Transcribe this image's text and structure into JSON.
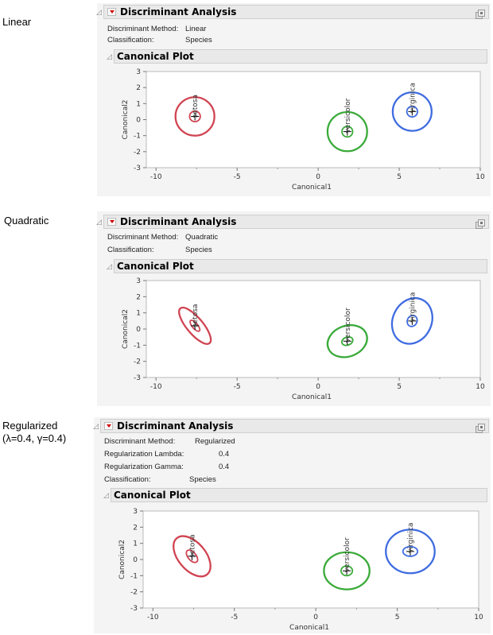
{
  "panels": [
    {
      "side_label": [
        "Linear"
      ],
      "title": "Discriminant Analysis",
      "info": [
        [
          "Discriminant Method:",
          "Linear"
        ],
        [
          "Classification:",
          "Species"
        ]
      ],
      "plot_title": "Canonical Plot"
    },
    {
      "side_label": [
        "Quadratic"
      ],
      "title": "Discriminant Analysis",
      "info": [
        [
          "Discriminant Method:",
          "Quadratic"
        ],
        [
          "Classification:",
          "Species"
        ]
      ],
      "plot_title": "Canonical Plot"
    },
    {
      "side_label": [
        "Regularized",
        "(λ=0.4, γ=0.4)"
      ],
      "title": "Discriminant Analysis",
      "info": [
        [
          "Discriminant Method:",
          "Regularized"
        ],
        [
          "Regularization Lambda:",
          "0.4"
        ],
        [
          "Regularization Gamma:",
          "0.4"
        ],
        [
          "Classification:",
          "Species"
        ]
      ],
      "plot_title": "Canonical Plot"
    }
  ],
  "colors": {
    "setosa": "#d04452",
    "versicolor": "#3aaa3a",
    "virginica": "#3f6ce0"
  },
  "chart_data": [
    {
      "type": "scatter",
      "xlabel": "Canonical1",
      "ylabel": "Canonical2",
      "xlim": [
        -10.6,
        10
      ],
      "ylim": [
        -3,
        3
      ],
      "xticks": [
        -10,
        -5,
        0,
        5,
        10
      ],
      "yticks": [
        3,
        2,
        1,
        0,
        -1,
        -2,
        -3
      ],
      "groups": [
        {
          "name": "setosa",
          "center": [
            -7.6,
            0.2
          ],
          "outer": [
            1.2,
            1.2,
            0
          ],
          "inner": [
            0.33,
            0.33,
            0
          ]
        },
        {
          "name": "versicolor",
          "center": [
            1.8,
            -0.75
          ],
          "outer": [
            1.22,
            1.22,
            0
          ],
          "inner": [
            0.33,
            0.33,
            0
          ]
        },
        {
          "name": "virginica",
          "center": [
            5.8,
            0.5
          ],
          "outer": [
            1.2,
            1.2,
            0
          ],
          "inner": [
            0.33,
            0.33,
            0
          ]
        }
      ]
    },
    {
      "type": "scatter",
      "xlabel": "Canonical1",
      "ylabel": "Canonical2",
      "xlim": [
        -10.6,
        10
      ],
      "ylim": [
        -3,
        3
      ],
      "xticks": [
        -10,
        -5,
        0,
        5,
        10
      ],
      "yticks": [
        3,
        2,
        1,
        0,
        -1,
        -2,
        -3
      ],
      "groups": [
        {
          "name": "setosa",
          "center": [
            -7.6,
            0.2
          ],
          "outer": [
            1.4,
            0.5,
            -50
          ],
          "inner": [
            0.42,
            0.17,
            -50
          ]
        },
        {
          "name": "versicolor",
          "center": [
            1.8,
            -0.75
          ],
          "outer": [
            1.25,
            0.95,
            20
          ],
          "inner": [
            0.35,
            0.25,
            20
          ]
        },
        {
          "name": "virginica",
          "center": [
            5.8,
            0.5
          ],
          "outer": [
            1.45,
            1.2,
            65
          ],
          "inner": [
            0.35,
            0.3,
            65
          ]
        }
      ]
    },
    {
      "type": "scatter",
      "xlabel": "Canonical1",
      "ylabel": "Canonical2",
      "xlim": [
        -10.6,
        10
      ],
      "ylim": [
        -3,
        3
      ],
      "xticks": [
        -10,
        -5,
        0,
        5,
        10
      ],
      "yticks": [
        3,
        2,
        1,
        0,
        -1,
        -2,
        -3
      ],
      "groups": [
        {
          "name": "setosa",
          "center": [
            -7.6,
            0.2
          ],
          "outer": [
            1.45,
            0.85,
            -50
          ],
          "inner": [
            0.45,
            0.25,
            -50
          ]
        },
        {
          "name": "versicolor",
          "center": [
            1.9,
            -0.7
          ],
          "outer": [
            1.4,
            1.15,
            0
          ],
          "inner": [
            0.35,
            0.3,
            0
          ]
        },
        {
          "name": "virginica",
          "center": [
            5.8,
            0.5
          ],
          "outer": [
            1.5,
            1.35,
            0
          ],
          "inner": [
            0.45,
            0.3,
            0
          ]
        }
      ]
    }
  ]
}
